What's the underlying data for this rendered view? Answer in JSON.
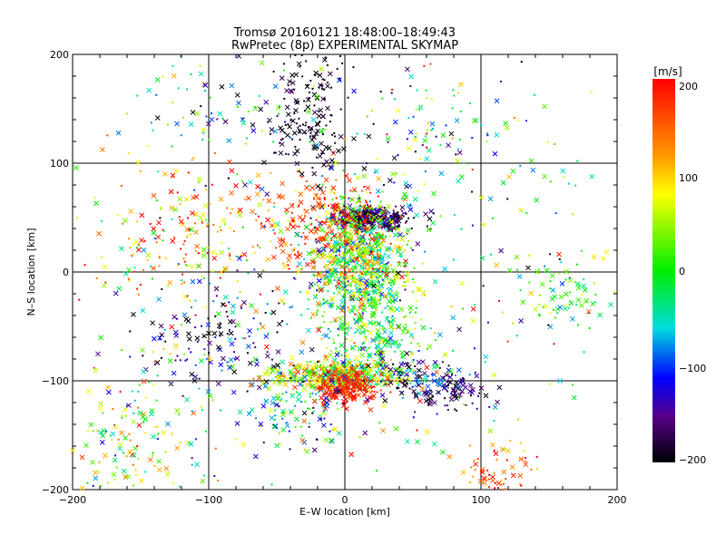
{
  "chart_data": {
    "type": "scatter",
    "title": "Tromsø 20160121 18:48:00–18:49:43",
    "subtitle": "RwPretec (8p) EXPERIMENTAL SKYMAP",
    "xlabel": "E–W location [km]",
    "ylabel": "N–S location [km]",
    "xlim": [
      -200,
      200
    ],
    "ylim": [
      -200,
      200
    ],
    "xticks": [
      "−200",
      "−100",
      "0",
      "100",
      "200"
    ],
    "yticks": [
      "−200",
      "−100",
      "0",
      "100",
      "200"
    ],
    "grid": true,
    "colorbar": {
      "label": "[m/s]",
      "range": [
        -200,
        200
      ],
      "ticks": [
        "200",
        "100",
        "0",
        "−100",
        "−200"
      ],
      "colormap": "rainbow (black → purple → blue → cyan → green → yellow → red)"
    },
    "markers": [
      "x",
      "dot"
    ],
    "clusters": [
      {
        "x": 20,
        "y": 50,
        "sx": 14,
        "sy": 5,
        "n": 320,
        "v": -170,
        "vs": 25
      },
      {
        "x": 10,
        "y": 15,
        "sx": 18,
        "sy": 28,
        "n": 700,
        "v": 30,
        "vs": 80
      },
      {
        "x": 20,
        "y": -50,
        "sx": 20,
        "sy": 30,
        "n": 320,
        "v": 0,
        "vs": 50
      },
      {
        "x": -5,
        "y": -95,
        "sx": 25,
        "sy": 7,
        "n": 380,
        "v": 60,
        "vs": 60
      },
      {
        "x": 0,
        "y": -105,
        "sx": 10,
        "sy": 8,
        "n": 220,
        "v": 185,
        "vs": 20
      },
      {
        "x": -35,
        "y": -125,
        "sx": 20,
        "sy": 20,
        "n": 120,
        "v": -60,
        "vs": 80
      },
      {
        "x": 75,
        "y": -110,
        "sx": 15,
        "sy": 10,
        "n": 90,
        "v": -170,
        "vs": 30
      },
      {
        "x": 50,
        "y": -95,
        "sx": 18,
        "sy": 10,
        "n": 90,
        "v": -130,
        "vs": 60
      },
      {
        "x": -30,
        "y": 130,
        "sx": 15,
        "sy": 20,
        "n": 120,
        "v": -190,
        "vs": 15
      },
      {
        "x": -25,
        "y": 180,
        "sx": 15,
        "sy": 15,
        "n": 60,
        "v": -190,
        "vs": 15
      },
      {
        "x": -90,
        "y": -60,
        "sx": 30,
        "sy": 25,
        "n": 140,
        "v": -150,
        "vs": 60
      },
      {
        "x": -110,
        "y": 30,
        "sx": 35,
        "sy": 35,
        "n": 200,
        "v": 130,
        "vs": 80
      },
      {
        "x": -150,
        "y": -150,
        "sx": 30,
        "sy": 35,
        "n": 150,
        "v": 40,
        "vs": 80
      },
      {
        "x": 160,
        "y": -20,
        "sx": 20,
        "sy": 15,
        "n": 70,
        "v": 20,
        "vs": 40
      },
      {
        "x": 110,
        "y": -185,
        "sx": 12,
        "sy": 15,
        "n": 70,
        "v": 150,
        "vs": 40
      },
      {
        "x": 60,
        "y": 120,
        "sx": 40,
        "sy": 30,
        "n": 100,
        "v": -50,
        "vs": 100
      },
      {
        "x": -100,
        "y": 150,
        "sx": 30,
        "sy": 25,
        "n": 60,
        "v": -60,
        "vs": 100
      },
      {
        "x": -20,
        "y": 40,
        "sx": 20,
        "sy": 25,
        "n": 150,
        "v": 170,
        "vs": 30
      },
      {
        "x": 0,
        "y": 0,
        "sx": 110,
        "sy": 110,
        "n": 450,
        "v": 0,
        "vs": 110
      }
    ]
  }
}
